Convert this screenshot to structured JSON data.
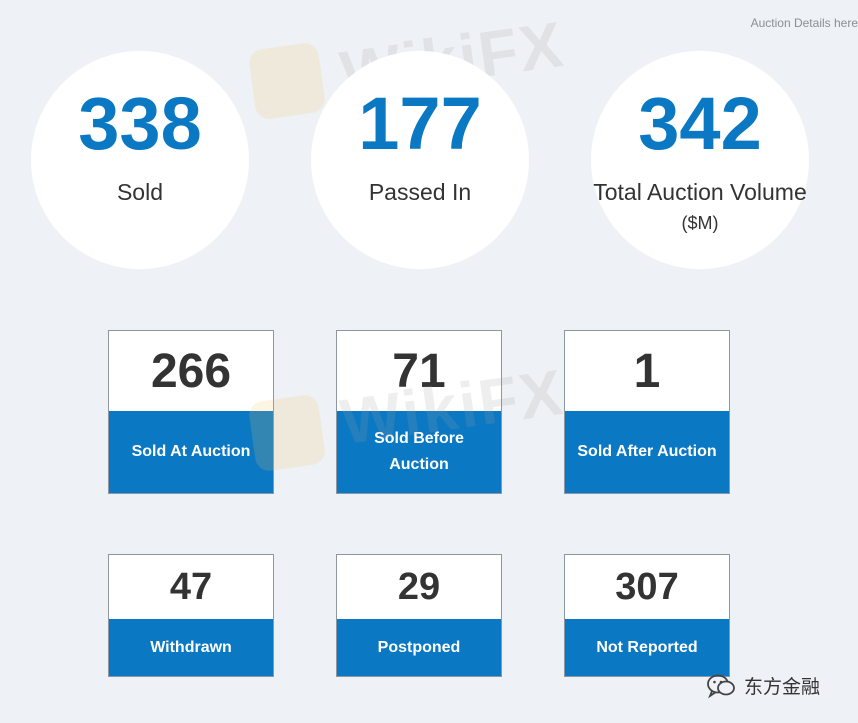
{
  "header": {
    "note": "Auction Details here"
  },
  "summary": [
    {
      "value": "338",
      "label": "Sold"
    },
    {
      "value": "177",
      "label": "Passed In"
    },
    {
      "value": "342",
      "label": "Total Auction Volume",
      "unit": "($M)"
    }
  ],
  "breakdown": [
    {
      "value": "266",
      "label": "Sold At Auction"
    },
    {
      "value": "71",
      "label": "Sold Before Auction"
    },
    {
      "value": "1",
      "label": "Sold After Auction"
    },
    {
      "value": "47",
      "label": "Withdrawn"
    },
    {
      "value": "29",
      "label": "Postponed"
    },
    {
      "value": "307",
      "label": "Not Reported"
    }
  ],
  "watermark": {
    "text": "WikiFX"
  },
  "source_badge": {
    "icon": "wechat-icon",
    "text": "东方金融"
  },
  "colors": {
    "accent": "#0a78c2",
    "background": "#eef1f5",
    "value_text": "#333333"
  }
}
